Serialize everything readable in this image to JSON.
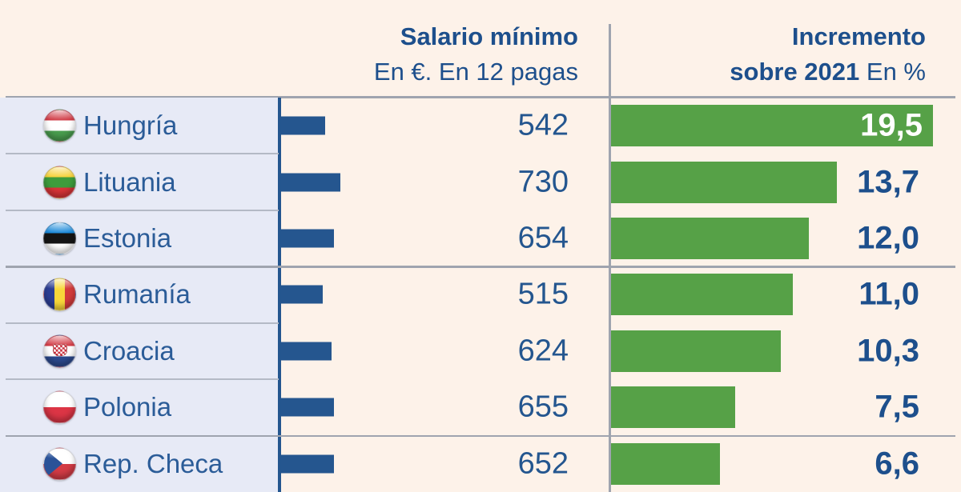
{
  "header": {
    "salary_title": "Salario mínimo",
    "salary_subtitle": "En €. En 12 pagas",
    "increase_title": "Incremento",
    "increase_subtitle_bold": "sobre 2021",
    "increase_subtitle_regular": "En %"
  },
  "chart_data": {
    "type": "bar",
    "orientation": "horizontal",
    "categories": [
      "Hungría",
      "Lituania",
      "Estonia",
      "Rumanía",
      "Croacia",
      "Polonia",
      "Rep. Checa"
    ],
    "flag_icons": [
      "hungary",
      "lithuania",
      "estonia",
      "romania",
      "croatia",
      "poland",
      "czech"
    ],
    "series": [
      {
        "name": "Salario mínimo",
        "unit": "En €. En 12 pagas",
        "values": [
          542,
          730,
          654,
          515,
          624,
          655,
          652
        ],
        "labels": [
          "542",
          "730",
          "654",
          "515",
          "624",
          "655",
          "652"
        ],
        "bar_color": "#25568f"
      },
      {
        "name": "Incremento sobre 2021",
        "unit": "En %",
        "values": [
          19.5,
          13.7,
          12.0,
          11.0,
          10.3,
          7.5,
          6.6
        ],
        "labels": [
          "19,5",
          "13,7",
          "12,0",
          "11,0",
          "10,3",
          "7,5",
          "6,6"
        ],
        "bar_color": "#56a147"
      }
    ],
    "group_separator_row_indices": [
      3,
      6
    ],
    "value_label_inside_bar": [
      true,
      false,
      false,
      false,
      false,
      false,
      false
    ]
  },
  "colors": {
    "background": "#fdf2e9",
    "panel_background": "#e7eaf6",
    "salary_bar": "#25568f",
    "increase_bar": "#56a147",
    "text_navy": "#1d4f8c",
    "rule_gray": "#9fa4af",
    "panel_rule_gray": "#b4bac6",
    "inside_label": "#ffffff"
  }
}
